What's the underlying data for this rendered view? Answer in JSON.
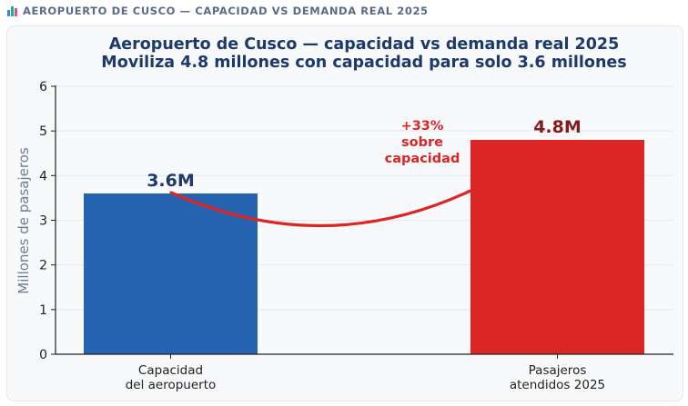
{
  "header": {
    "icon": "bar-chart-icon",
    "title": "AEROPUERTO DE CUSCO — CAPACIDAD VS DEMANDA REAL 2025"
  },
  "chart_data": {
    "type": "bar",
    "title": "Aeropuerto de Cusco — capacidad vs demanda real 2025",
    "subtitle": "Moviliza 4.8 millones con capacidad para solo 3.6 millones",
    "xlabel": "",
    "ylabel": "Millones de pasajeros",
    "ylim": [
      0,
      6
    ],
    "yticks": [
      0,
      1,
      2,
      3,
      4,
      5,
      6
    ],
    "grid": true,
    "categories": [
      [
        "Capacidad",
        "del aeropuerto"
      ],
      [
        "Pasajeros",
        "atendidos 2025"
      ]
    ],
    "values": [
      3.6,
      4.8
    ],
    "data_labels": [
      "3.6M",
      "4.8M"
    ],
    "colors": [
      "#2563b0",
      "#dc2626"
    ],
    "label_colors": [
      "#1d3a6b",
      "#7f1d1d"
    ],
    "annotation": {
      "lines": [
        "+33%",
        "sobre",
        "capacidad"
      ],
      "color": "#dc2626",
      "type": "arc-connector",
      "from": "Capacidad del aeropuerto",
      "to": "Pasajeros atendidos 2025"
    }
  }
}
